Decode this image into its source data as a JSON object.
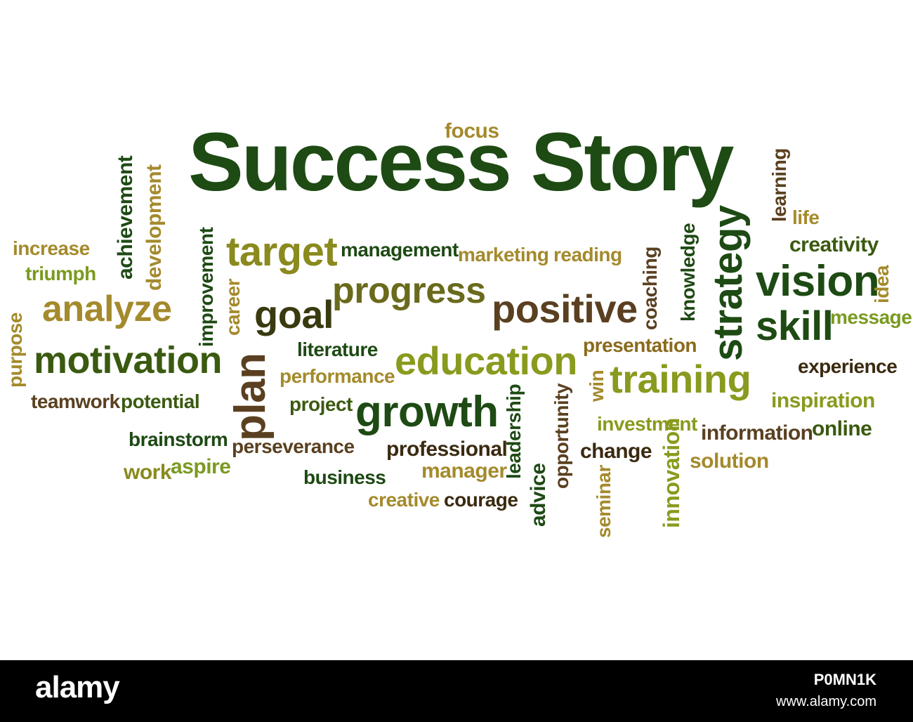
{
  "cloud": {
    "title": "Success Story",
    "words": {
      "focus": "focus",
      "target": "target",
      "management": "management",
      "marketing": "marketing",
      "reading": "reading",
      "progress": "progress",
      "positive": "positive",
      "goal": "goal",
      "increase": "increase",
      "triumph": "triumph",
      "analyze": "analyze",
      "motivation": "motivation",
      "teamwork": "teamwork",
      "potential": "potential",
      "brainstorm": "brainstorm",
      "work": "work",
      "aspire": "aspire",
      "literature": "literature",
      "performance": "performance",
      "project": "project",
      "perseverance": "perseverance",
      "business": "business",
      "education": "education",
      "growth": "growth",
      "professional": "professional",
      "manager": "manager",
      "creative": "creative",
      "courage": "courage",
      "presentation": "presentation",
      "training": "training",
      "investment": "investment",
      "change": "change",
      "vision": "vision",
      "skill": "skill",
      "message": "message",
      "experience": "experience",
      "inspiration": "inspiration",
      "information": "information",
      "online": "online",
      "solution": "solution",
      "life": "life",
      "creativity": "creativity",
      "achievement": "achievement",
      "development": "development",
      "purpose": "purpose",
      "improvement": "improvement",
      "career": "career",
      "plan": "plan",
      "leadership": "leadership",
      "advice": "advice",
      "opportunity": "opportunity",
      "win": "win",
      "seminar": "seminar",
      "innovation": "innovation",
      "coaching": "coaching",
      "knowledge": "knowledge",
      "strategy": "strategy",
      "learning": "learning",
      "idea": "idea"
    }
  },
  "footer": {
    "logo": "alamy",
    "image_id": "P0MN1K",
    "site": "www.alamy.com"
  },
  "colors": {
    "dark_green": "#1e4a14",
    "olive": "#8a8a1e",
    "brown": "#5a4020",
    "gold": "#a48a2c",
    "lime": "#7a9a20"
  }
}
